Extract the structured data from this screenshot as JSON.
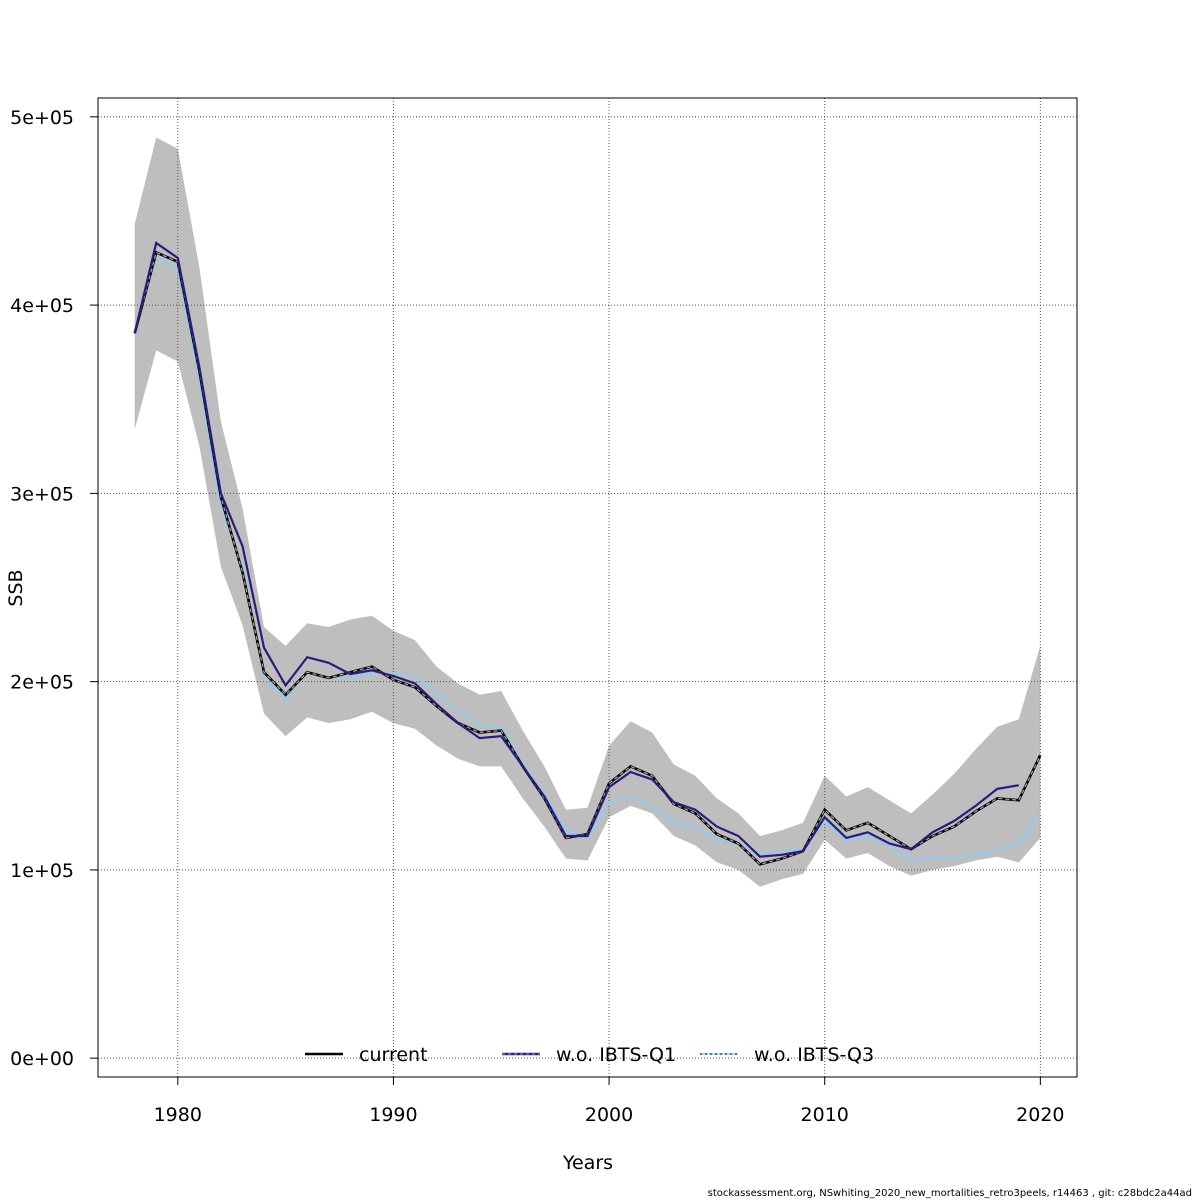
{
  "chart_data": {
    "type": "line",
    "xlabel": "Years",
    "ylabel": "SSB",
    "xlim": [
      1976.3,
      2021.7
    ],
    "ylim": [
      -10000,
      510000
    ],
    "x_ticks": [
      1980,
      1990,
      2000,
      2010,
      2020
    ],
    "x_tick_labels": [
      "1980",
      "1990",
      "2000",
      "2010",
      "2020"
    ],
    "y_ticks": [
      0,
      100000,
      200000,
      300000,
      400000,
      500000
    ],
    "y_tick_labels": [
      "0e+00",
      "1e+05",
      "2e+05",
      "3e+05",
      "4e+05",
      "5e+05"
    ],
    "grid": true,
    "legend_position": "bottom",
    "years": [
      1978,
      1979,
      1980,
      1981,
      1982,
      1983,
      1984,
      1985,
      1986,
      1987,
      1988,
      1989,
      1990,
      1991,
      1992,
      1993,
      1994,
      1995,
      1996,
      1997,
      1998,
      1999,
      2000,
      2001,
      2002,
      2003,
      2004,
      2005,
      2006,
      2007,
      2008,
      2009,
      2010,
      2011,
      2012,
      2013,
      2014,
      2015,
      2016,
      2017,
      2018,
      2019,
      2020
    ],
    "confidence_band": {
      "color": "#bebebe",
      "upper": [
        443000,
        489000,
        483000,
        420000,
        338000,
        292000,
        229000,
        219000,
        231000,
        229000,
        233000,
        235000,
        227000,
        222000,
        208000,
        199000,
        193000,
        195000,
        174000,
        155000,
        132000,
        133000,
        166000,
        179000,
        173000,
        156000,
        150000,
        138000,
        130000,
        118000,
        121000,
        125000,
        150000,
        139000,
        144000,
        137000,
        130000,
        140000,
        151000,
        164000,
        176000,
        180000,
        219000
      ],
      "lower": [
        334000,
        376000,
        370000,
        325000,
        261000,
        230000,
        183000,
        171000,
        181000,
        178000,
        180000,
        184000,
        178000,
        175000,
        166000,
        159000,
        155000,
        155000,
        138000,
        123000,
        106000,
        105000,
        128000,
        134000,
        130000,
        118000,
        113000,
        104000,
        100000,
        91000,
        95000,
        98000,
        116000,
        106000,
        109000,
        102000,
        97000,
        100000,
        102000,
        105000,
        107000,
        104000,
        117000
      ]
    },
    "series": [
      {
        "name": "current",
        "color": "#000000",
        "values": [
          385000,
          428000,
          423000,
          365000,
          298000,
          258000,
          205000,
          193000,
          205000,
          202000,
          205000,
          208000,
          201000,
          197000,
          187000,
          178000,
          173000,
          174000,
          155000,
          138000,
          117000,
          119000,
          146000,
          155000,
          150000,
          135000,
          130000,
          119000,
          114000,
          103000,
          106000,
          110000,
          132000,
          121000,
          125000,
          118000,
          111000,
          118000,
          123000,
          131000,
          138000,
          137000,
          161000
        ]
      },
      {
        "name": "w.o. IBTS-Q1",
        "color": "#2b1c7c",
        "values": [
          385000,
          433000,
          425000,
          367000,
          300000,
          272000,
          218000,
          198000,
          213000,
          210000,
          204000,
          206000,
          203000,
          199000,
          188000,
          178000,
          170000,
          171000,
          155000,
          139000,
          118000,
          118000,
          144000,
          152000,
          148000,
          136000,
          132000,
          123000,
          118000,
          107000,
          108000,
          110000,
          128000,
          117000,
          120000,
          114000,
          111000,
          120000,
          126000,
          134000,
          143000,
          145000,
          null
        ]
      },
      {
        "name": "w.o. IBTS-Q3",
        "color": "#87cefa",
        "values": [
          385000,
          426000,
          419000,
          360000,
          292000,
          262000,
          202000,
          191000,
          205000,
          202000,
          202000,
          205000,
          204000,
          203000,
          194000,
          185000,
          177000,
          176000,
          156000,
          140000,
          121000,
          117000,
          136000,
          139000,
          134000,
          126000,
          123000,
          116000,
          114000,
          109000,
          110000,
          111000,
          126000,
          116000,
          118000,
          113000,
          105000,
          107000,
          106000,
          108000,
          111000,
          114000,
          131000
        ]
      }
    ]
  },
  "footer": {
    "text": "stockassessment.org, NSwhiting_2020_new_mortalities_retro3peels, r14463 , git: c28bdc2a44ad"
  }
}
